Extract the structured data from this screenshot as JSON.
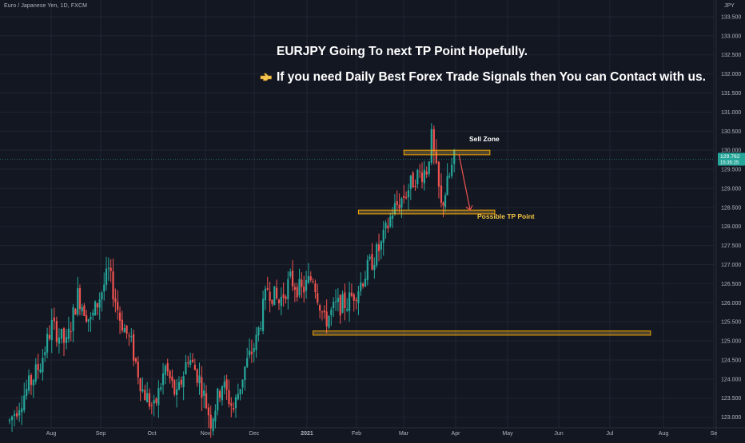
{
  "header": {
    "symbol_title": "Euro / Japanese Yen, 1D, FXCM",
    "currency": "JPY"
  },
  "annotations": {
    "headline": "EURJPY Going To next TP Point Hopefully.",
    "subheadline": "If you need Daily Best Forex Trade Signals then You can Contact with us.",
    "subheadline_icon": "pointing-hand-icon",
    "sell_zone_label": "Sell Zone",
    "tp_label": "Possible TP Point"
  },
  "price_tag": {
    "price": "129.762",
    "countdown": "15:35:25"
  },
  "colors": {
    "background": "#131722",
    "grid": "#1f2433",
    "candle_up": "#26a69a",
    "candle_down": "#ef5350",
    "zone_fill": "#f5c451",
    "zone_border": "#f7a600",
    "arrow": "#ef5350",
    "tp_text": "#f7c843",
    "axis_text": "#b2b5be",
    "price_tag": "#26a69a"
  },
  "chart_data": {
    "type": "candlestick",
    "y_axis_ticks": [
      "133.500",
      "133.000",
      "132.500",
      "132.000",
      "131.500",
      "131.000",
      "130.500",
      "130.000",
      "129.500",
      "129.000",
      "128.500",
      "128.000",
      "127.500",
      "127.000",
      "126.500",
      "126.000",
      "125.500",
      "125.000",
      "124.500",
      "124.000",
      "123.500",
      "123.000"
    ],
    "x_axis_ticks": [
      "Aug",
      "Sep",
      "Oct",
      "Nov",
      "Dec",
      "2021",
      "Feb",
      "Mar",
      "Apr",
      "May",
      "Jun",
      "Jul",
      "Aug",
      "Se"
    ],
    "ylim": [
      122.7,
      133.8
    ],
    "zones": [
      {
        "name": "Sell Zone",
        "x_from": "2021-03-01",
        "x_to": "2021-04-23",
        "y_from": 129.88,
        "y_to": 130.0
      },
      {
        "name": "Possible TP Point",
        "x_from": "2021-02-01",
        "x_to": "2021-04-26",
        "y_from": 128.33,
        "y_to": 128.43
      },
      {
        "name": "support",
        "x_from": "2021-01-04",
        "x_to": "2021-07-31",
        "y_from": 125.15,
        "y_to": 125.26
      }
    ],
    "current_price": 129.762,
    "anchors": [
      {
        "date": "2020-07-01",
        "close": 122.9
      },
      {
        "date": "2020-07-10",
        "close": 123.6
      },
      {
        "date": "2020-07-20",
        "close": 124.4
      },
      {
        "date": "2020-07-27",
        "close": 125.4
      },
      {
        "date": "2020-08-05",
        "close": 124.9
      },
      {
        "date": "2020-08-12",
        "close": 126.2
      },
      {
        "date": "2020-08-20",
        "close": 125.5
      },
      {
        "date": "2020-08-31",
        "close": 126.8
      },
      {
        "date": "2020-09-07",
        "close": 125.6
      },
      {
        "date": "2020-09-14",
        "close": 124.9
      },
      {
        "date": "2020-09-21",
        "close": 123.7
      },
      {
        "date": "2020-09-28",
        "close": 123.2
      },
      {
        "date": "2020-10-05",
        "close": 124.3
      },
      {
        "date": "2020-10-12",
        "close": 123.5
      },
      {
        "date": "2020-10-19",
        "close": 124.6
      },
      {
        "date": "2020-10-26",
        "close": 124.0
      },
      {
        "date": "2020-11-02",
        "close": 122.9
      },
      {
        "date": "2020-11-09",
        "close": 123.9
      },
      {
        "date": "2020-11-16",
        "close": 123.2
      },
      {
        "date": "2020-11-23",
        "close": 124.3
      },
      {
        "date": "2020-11-30",
        "close": 125.0
      },
      {
        "date": "2020-12-07",
        "close": 126.4
      },
      {
        "date": "2020-12-14",
        "close": 126.0
      },
      {
        "date": "2020-12-21",
        "close": 126.6
      },
      {
        "date": "2020-12-28",
        "close": 126.3
      },
      {
        "date": "2021-01-04",
        "close": 126.7
      },
      {
        "date": "2021-01-11",
        "close": 125.5
      },
      {
        "date": "2021-01-18",
        "close": 125.9
      },
      {
        "date": "2021-01-25",
        "close": 126.0
      },
      {
        "date": "2021-02-01",
        "close": 126.4
      },
      {
        "date": "2021-02-08",
        "close": 127.0
      },
      {
        "date": "2021-02-15",
        "close": 127.5
      },
      {
        "date": "2021-02-22",
        "close": 128.4
      },
      {
        "date": "2021-03-01",
        "close": 128.8
      },
      {
        "date": "2021-03-08",
        "close": 129.3
      },
      {
        "date": "2021-03-15",
        "close": 129.5
      },
      {
        "date": "2021-03-18",
        "close": 130.3
      },
      {
        "date": "2021-03-24",
        "close": 128.5
      },
      {
        "date": "2021-03-29",
        "close": 129.3
      },
      {
        "date": "2021-04-01",
        "close": 129.762
      }
    ]
  }
}
